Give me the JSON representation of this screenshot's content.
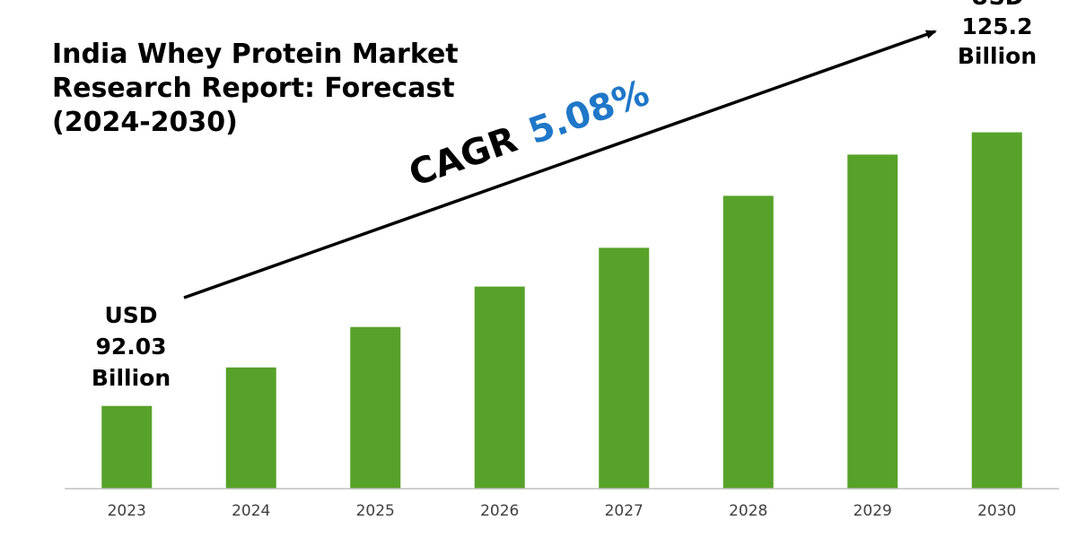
{
  "chart_data": {
    "type": "bar",
    "title_lines": [
      "India Whey Protein Market",
      "Research Report: Forecast",
      "(2024-2030)"
    ],
    "categories": [
      "2023",
      "2024",
      "2025",
      "2026",
      "2027",
      "2028",
      "2029",
      "2030"
    ],
    "values": [
      92.03,
      96.7,
      101.6,
      106.5,
      111.2,
      117.5,
      122.5,
      125.2
    ],
    "ylim": [
      82,
      132
    ],
    "grid": false,
    "bar_color": "#57a229",
    "axis_color": "#bfbfbf",
    "annotations": {
      "start_callout": [
        "USD",
        "92.03",
        "Billion"
      ],
      "end_callout": [
        "USD",
        "125.2",
        "Billion"
      ],
      "cagr_prefix": "CAGR",
      "cagr_value": "5.08%",
      "cagr_color": "#1f77c8"
    }
  }
}
